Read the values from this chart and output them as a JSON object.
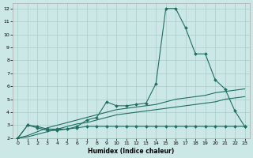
{
  "xlabel": "Humidex (Indice chaleur)",
  "bg_color": "#cce8e6",
  "grid_color": "#aaccca",
  "line_color": "#1e6e62",
  "xlim": [
    -0.5,
    23.5
  ],
  "ylim": [
    2.0,
    12.4
  ],
  "xticks": [
    0,
    1,
    2,
    3,
    4,
    5,
    6,
    7,
    8,
    9,
    10,
    11,
    12,
    13,
    14,
    15,
    16,
    17,
    18,
    19,
    20,
    21,
    22,
    23
  ],
  "yticks": [
    2,
    3,
    4,
    5,
    6,
    7,
    8,
    9,
    10,
    11,
    12
  ],
  "line1_x": [
    0,
    1,
    2,
    3,
    4,
    5,
    6,
    7,
    8,
    9,
    10,
    11,
    12,
    13,
    14,
    15,
    16,
    17,
    18,
    19,
    20,
    21,
    22,
    23
  ],
  "line1_y": [
    2.0,
    3.0,
    2.8,
    2.6,
    2.6,
    2.7,
    2.9,
    3.4,
    3.6,
    4.8,
    4.5,
    4.5,
    4.6,
    4.7,
    6.2,
    12.0,
    12.0,
    10.5,
    8.5,
    8.5,
    6.5,
    5.8,
    4.1,
    2.9
  ],
  "line2_x": [
    0,
    1,
    2,
    3,
    4,
    5,
    6,
    7,
    8,
    9,
    10,
    11,
    12,
    13,
    14,
    15,
    16,
    17,
    18,
    19,
    20,
    21,
    22,
    23
  ],
  "line2_y": [
    2.0,
    2.2,
    2.5,
    2.8,
    3.0,
    3.2,
    3.4,
    3.6,
    3.8,
    4.0,
    4.2,
    4.3,
    4.4,
    4.5,
    4.6,
    4.8,
    5.0,
    5.1,
    5.2,
    5.3,
    5.5,
    5.6,
    5.7,
    5.8
  ],
  "line3_x": [
    0,
    1,
    2,
    3,
    4,
    5,
    6,
    7,
    8,
    9,
    10,
    11,
    12,
    13,
    14,
    15,
    16,
    17,
    18,
    19,
    20,
    21,
    22,
    23
  ],
  "line3_y": [
    2.0,
    2.1,
    2.3,
    2.5,
    2.7,
    2.9,
    3.1,
    3.2,
    3.4,
    3.6,
    3.8,
    3.9,
    4.0,
    4.1,
    4.2,
    4.3,
    4.4,
    4.5,
    4.6,
    4.7,
    4.8,
    5.0,
    5.1,
    5.2
  ],
  "line4_x": [
    0,
    1,
    2,
    3,
    4,
    5,
    6,
    7,
    8,
    9,
    10,
    11,
    12,
    13,
    14,
    15,
    16,
    17,
    18,
    19,
    20,
    21,
    22,
    23
  ],
  "line4_y": [
    2.0,
    3.0,
    2.9,
    2.7,
    2.7,
    2.7,
    2.8,
    2.9,
    2.9,
    2.9,
    2.9,
    2.9,
    2.9,
    2.9,
    2.9,
    2.9,
    2.9,
    2.9,
    2.9,
    2.9,
    2.9,
    2.9,
    2.9,
    2.9
  ]
}
